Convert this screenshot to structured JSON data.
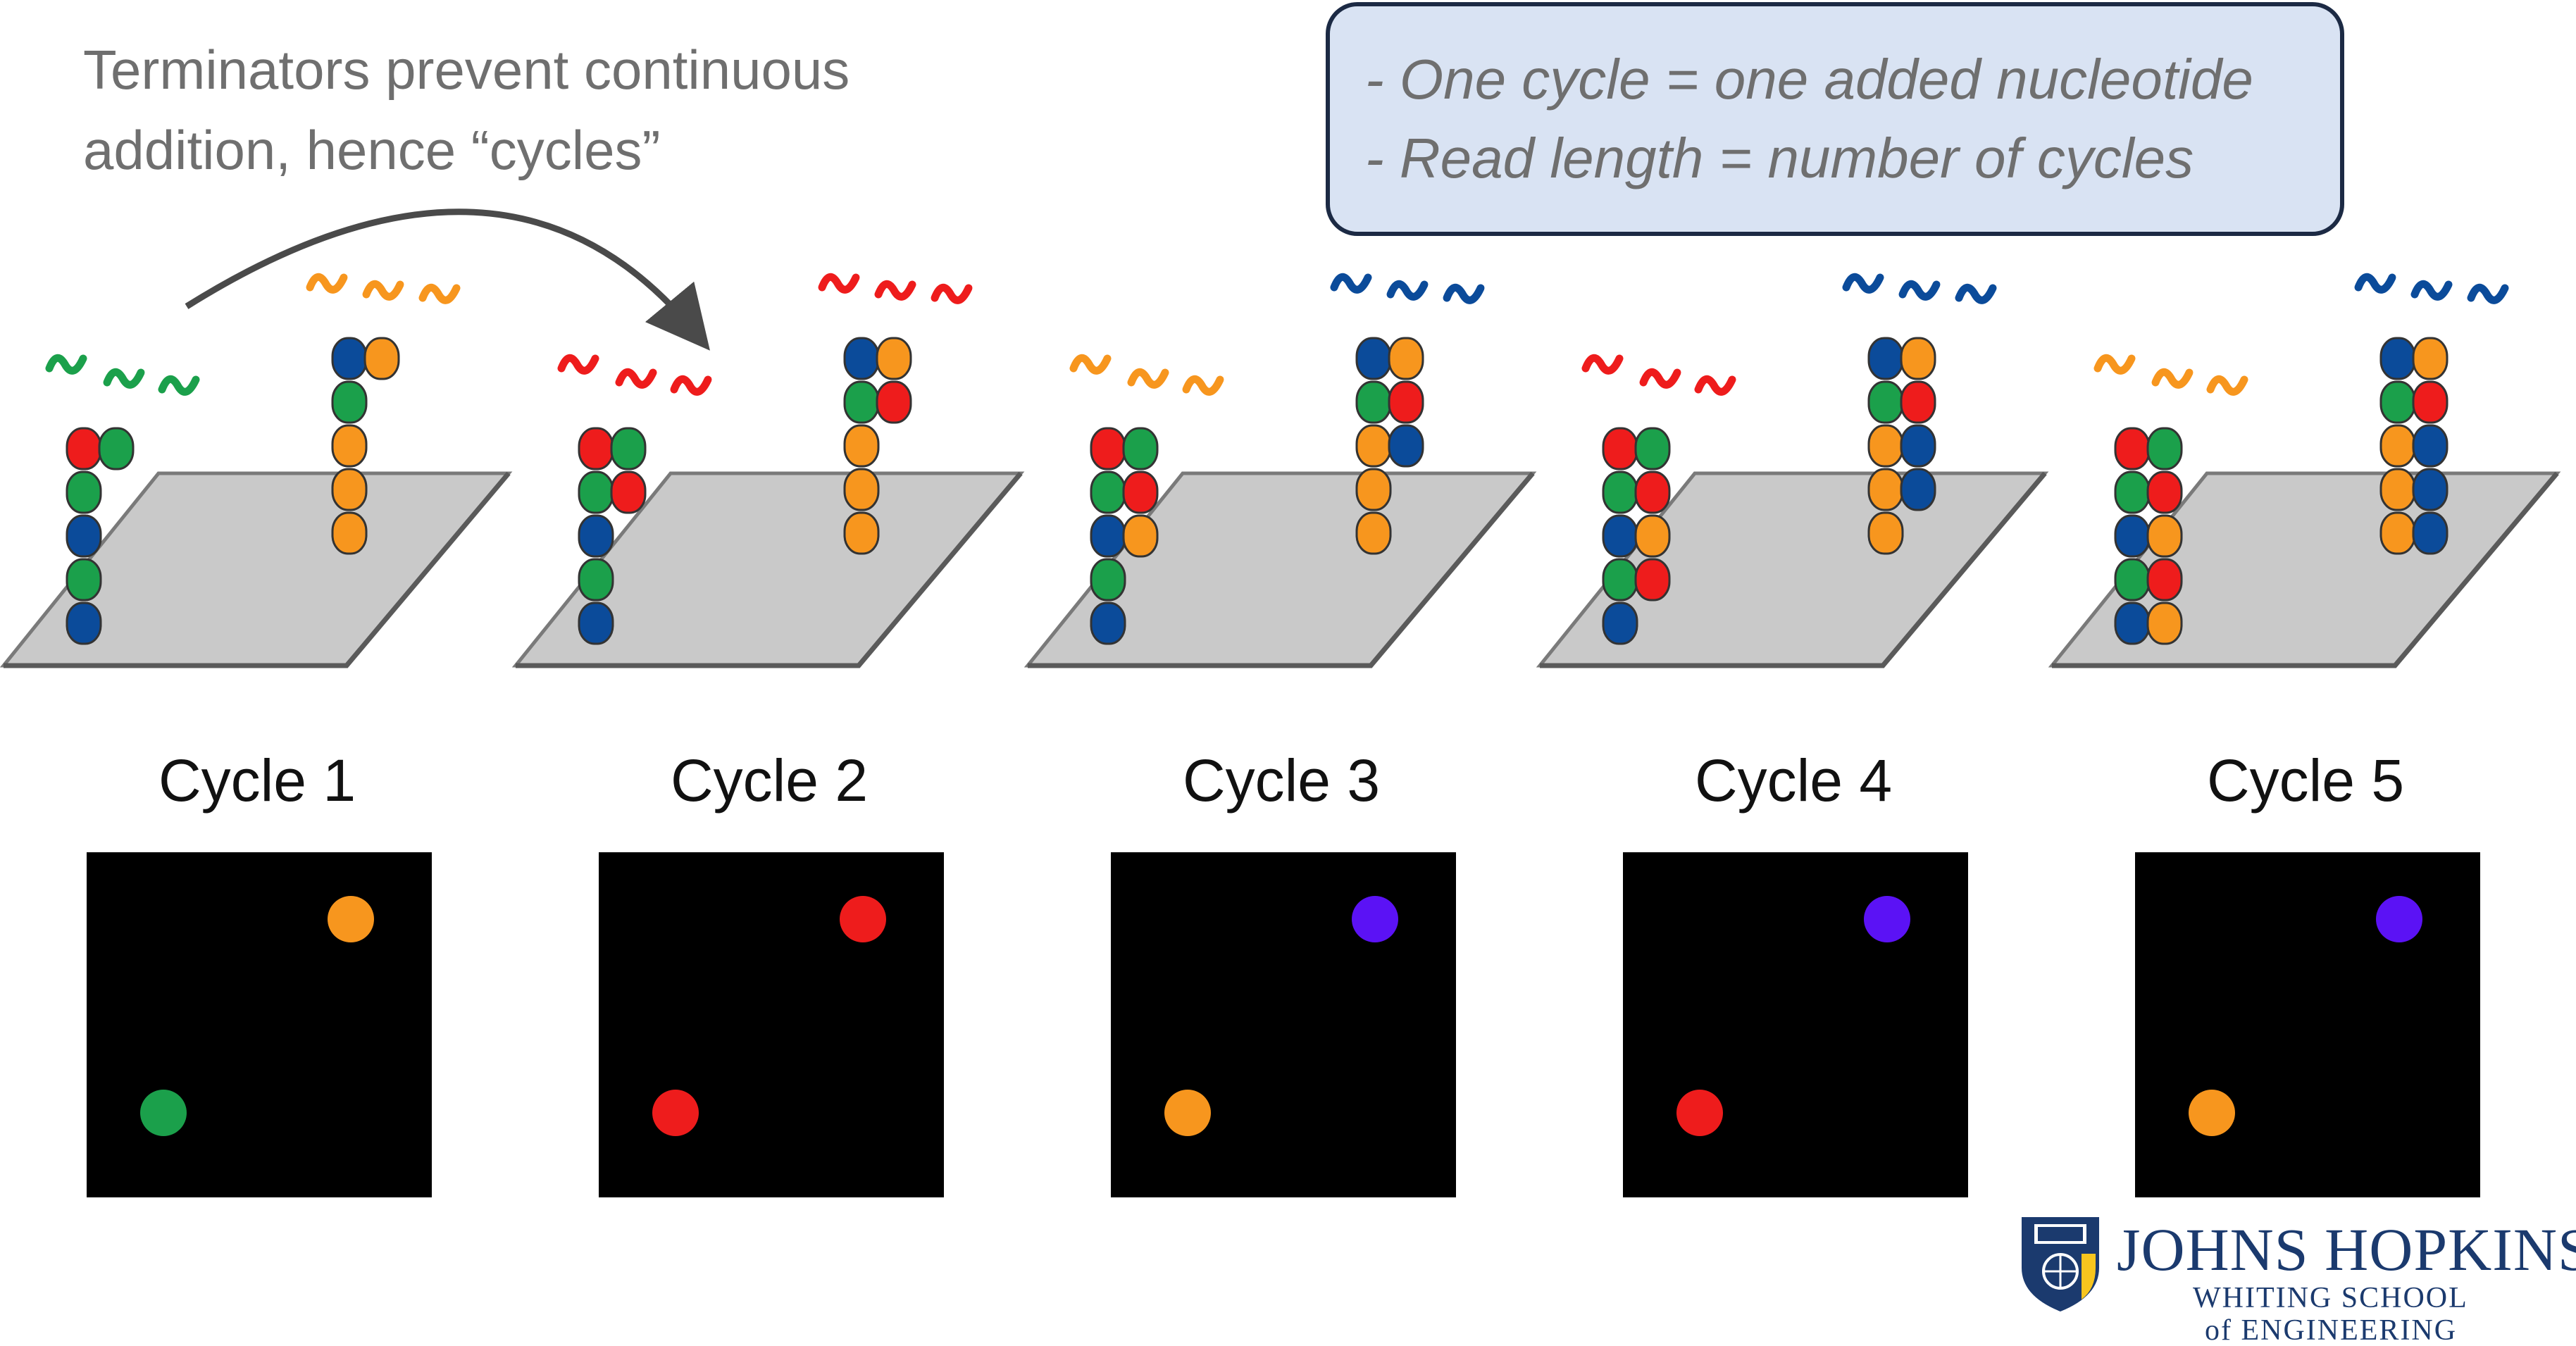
{
  "intro_text": {
    "line1": "Terminators prevent continuous",
    "line2": "addition, hence “cycles”"
  },
  "callout": {
    "line1": "- One cycle = one added nucleotide",
    "line2": "- Read length = number of cycles"
  },
  "colors": {
    "red": "#ee1c1c",
    "green": "#1ba04b",
    "blue": "#0b4b9a",
    "orange": "#f7961e",
    "violet": "#5b12f5",
    "plate": "#c9c9c9",
    "callout_fill": "#d9e3f3",
    "callout_border": "#1c2a44",
    "text_gray": "#6f6f6f",
    "jhu_blue": "#1b3a6e"
  },
  "cycles": [
    {
      "label": "Cycle 1",
      "left_strand": {
        "template": [
          "red",
          "green",
          "blue",
          "green",
          "blue"
        ],
        "added": [
          "green"
        ]
      },
      "right_strand": {
        "template": [
          "blue",
          "green",
          "orange",
          "orange",
          "orange"
        ],
        "added": [
          "orange"
        ]
      },
      "left_free_nucleotide": "green",
      "right_free_nucleotide": "orange",
      "image_spots": {
        "top_right": "orange",
        "bottom_left": "green"
      }
    },
    {
      "label": "Cycle 2",
      "left_strand": {
        "template": [
          "red",
          "green",
          "blue",
          "green",
          "blue"
        ],
        "added": [
          "green",
          "red"
        ]
      },
      "right_strand": {
        "template": [
          "blue",
          "green",
          "orange",
          "orange",
          "orange"
        ],
        "added": [
          "orange",
          "red"
        ]
      },
      "left_free_nucleotide": "red",
      "right_free_nucleotide": "red",
      "image_spots": {
        "top_right": "red",
        "bottom_left": "red"
      }
    },
    {
      "label": "Cycle 3",
      "left_strand": {
        "template": [
          "red",
          "green",
          "blue",
          "green",
          "blue"
        ],
        "added": [
          "green",
          "red",
          "orange"
        ]
      },
      "right_strand": {
        "template": [
          "blue",
          "green",
          "orange",
          "orange",
          "orange"
        ],
        "added": [
          "orange",
          "red",
          "blue"
        ]
      },
      "left_free_nucleotide": "orange",
      "right_free_nucleotide": "blue",
      "image_spots": {
        "top_right": "violet",
        "bottom_left": "orange"
      }
    },
    {
      "label": "Cycle 4",
      "left_strand": {
        "template": [
          "red",
          "green",
          "blue",
          "green",
          "blue"
        ],
        "added": [
          "green",
          "red",
          "orange",
          "red"
        ]
      },
      "right_strand": {
        "template": [
          "blue",
          "green",
          "orange",
          "orange",
          "orange"
        ],
        "added": [
          "orange",
          "red",
          "blue",
          "blue"
        ]
      },
      "left_free_nucleotide": "red",
      "right_free_nucleotide": "blue",
      "image_spots": {
        "top_right": "violet",
        "bottom_left": "red"
      }
    },
    {
      "label": "Cycle 5",
      "left_strand": {
        "template": [
          "red",
          "green",
          "blue",
          "green",
          "blue"
        ],
        "added": [
          "green",
          "red",
          "orange",
          "red",
          "orange"
        ]
      },
      "right_strand": {
        "template": [
          "blue",
          "green",
          "orange",
          "orange",
          "orange"
        ],
        "added": [
          "orange",
          "red",
          "blue",
          "blue",
          "blue"
        ]
      },
      "left_free_nucleotide": "orange",
      "right_free_nucleotide": "blue",
      "image_spots": {
        "top_right": "violet",
        "bottom_left": "orange"
      }
    }
  ],
  "logo": {
    "name": "JOHNS HOPKINS",
    "line2": "WHITING SCHOOL",
    "line3": "of ENGINEERING",
    "shield_icon": "jhu-shield-icon"
  }
}
